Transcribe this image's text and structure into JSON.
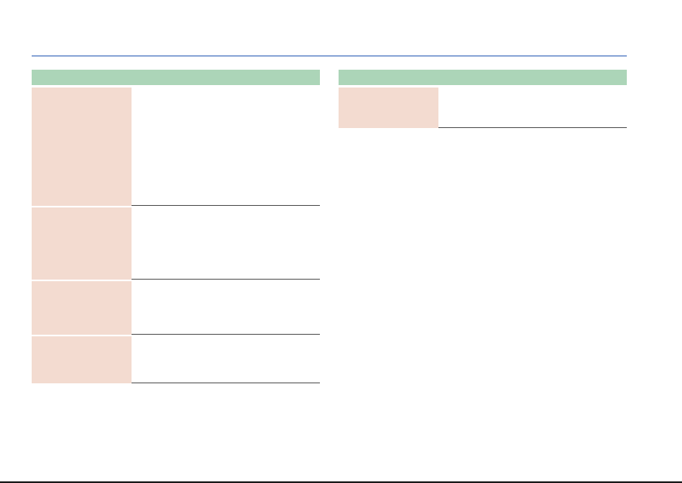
{
  "colors": {
    "rule": "#8fa9d8",
    "section_header": "#acd5b8",
    "row_label": "#f3dbd0",
    "divider": "#555555"
  },
  "left_panel": {
    "header": "",
    "rows": [
      {
        "label": "",
        "value": ""
      },
      {
        "label": "",
        "value": ""
      },
      {
        "label": "",
        "value": ""
      },
      {
        "label": "",
        "value": ""
      }
    ]
  },
  "right_panel": {
    "header": "",
    "rows": [
      {
        "label": "",
        "value": ""
      }
    ]
  }
}
